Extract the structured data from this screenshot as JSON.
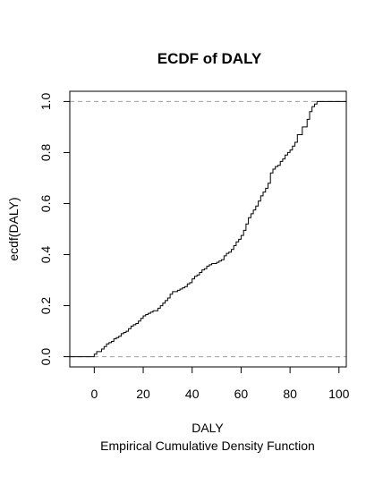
{
  "chart_data": {
    "type": "step",
    "title": "ECDF of DALY",
    "xlabel": "DALY",
    "subtitle": "Empirical Cumulative Density Function",
    "ylabel": "ecdf(DALY)",
    "xlim": [
      -10,
      103
    ],
    "ylim": [
      -0.04,
      1.04
    ],
    "x_ticks": [
      0,
      20,
      40,
      60,
      80,
      100
    ],
    "x_tick_labels": [
      "0",
      "20",
      "40",
      "60",
      "80",
      "100"
    ],
    "y_ticks": [
      0.0,
      0.2,
      0.4,
      0.6,
      0.8,
      1.0
    ],
    "y_tick_labels": [
      "0.0",
      "0.2",
      "0.4",
      "0.6",
      "0.8",
      "1.0"
    ],
    "reference_lines_y": [
      0,
      1
    ],
    "grid": false,
    "series": [
      {
        "x": [
          0,
          1,
          3,
          4,
          5,
          6,
          7,
          8,
          9,
          10,
          11,
          12,
          13,
          14,
          15,
          16,
          17,
          18,
          19,
          20,
          21,
          22,
          23,
          24,
          26,
          27,
          28,
          29,
          30,
          31,
          32,
          34,
          35,
          36,
          37,
          38,
          39,
          40,
          41,
          42,
          43,
          44,
          45,
          46,
          47,
          48,
          50,
          51,
          52,
          53,
          54,
          55,
          56,
          57,
          58,
          59,
          60,
          61,
          62,
          63,
          64,
          65,
          66,
          67,
          68,
          69,
          70,
          71,
          72,
          73,
          74,
          75,
          76,
          77,
          78,
          79,
          80,
          81,
          82,
          83,
          85,
          87,
          88,
          89,
          90,
          91,
          92
        ],
        "y": [
          0.01,
          0.02,
          0.03,
          0.04,
          0.05,
          0.055,
          0.06,
          0.07,
          0.075,
          0.08,
          0.09,
          0.095,
          0.1,
          0.11,
          0.12,
          0.125,
          0.13,
          0.14,
          0.15,
          0.16,
          0.165,
          0.17,
          0.175,
          0.18,
          0.19,
          0.2,
          0.21,
          0.22,
          0.23,
          0.245,
          0.255,
          0.26,
          0.265,
          0.27,
          0.275,
          0.285,
          0.29,
          0.305,
          0.315,
          0.32,
          0.33,
          0.34,
          0.345,
          0.355,
          0.36,
          0.365,
          0.37,
          0.375,
          0.38,
          0.395,
          0.405,
          0.41,
          0.42,
          0.435,
          0.45,
          0.46,
          0.475,
          0.495,
          0.52,
          0.545,
          0.56,
          0.575,
          0.59,
          0.61,
          0.63,
          0.645,
          0.66,
          0.68,
          0.72,
          0.735,
          0.745,
          0.75,
          0.765,
          0.775,
          0.79,
          0.8,
          0.81,
          0.825,
          0.84,
          0.87,
          0.9,
          0.93,
          0.96,
          0.98,
          0.99,
          1.0,
          1.0
        ]
      }
    ]
  }
}
